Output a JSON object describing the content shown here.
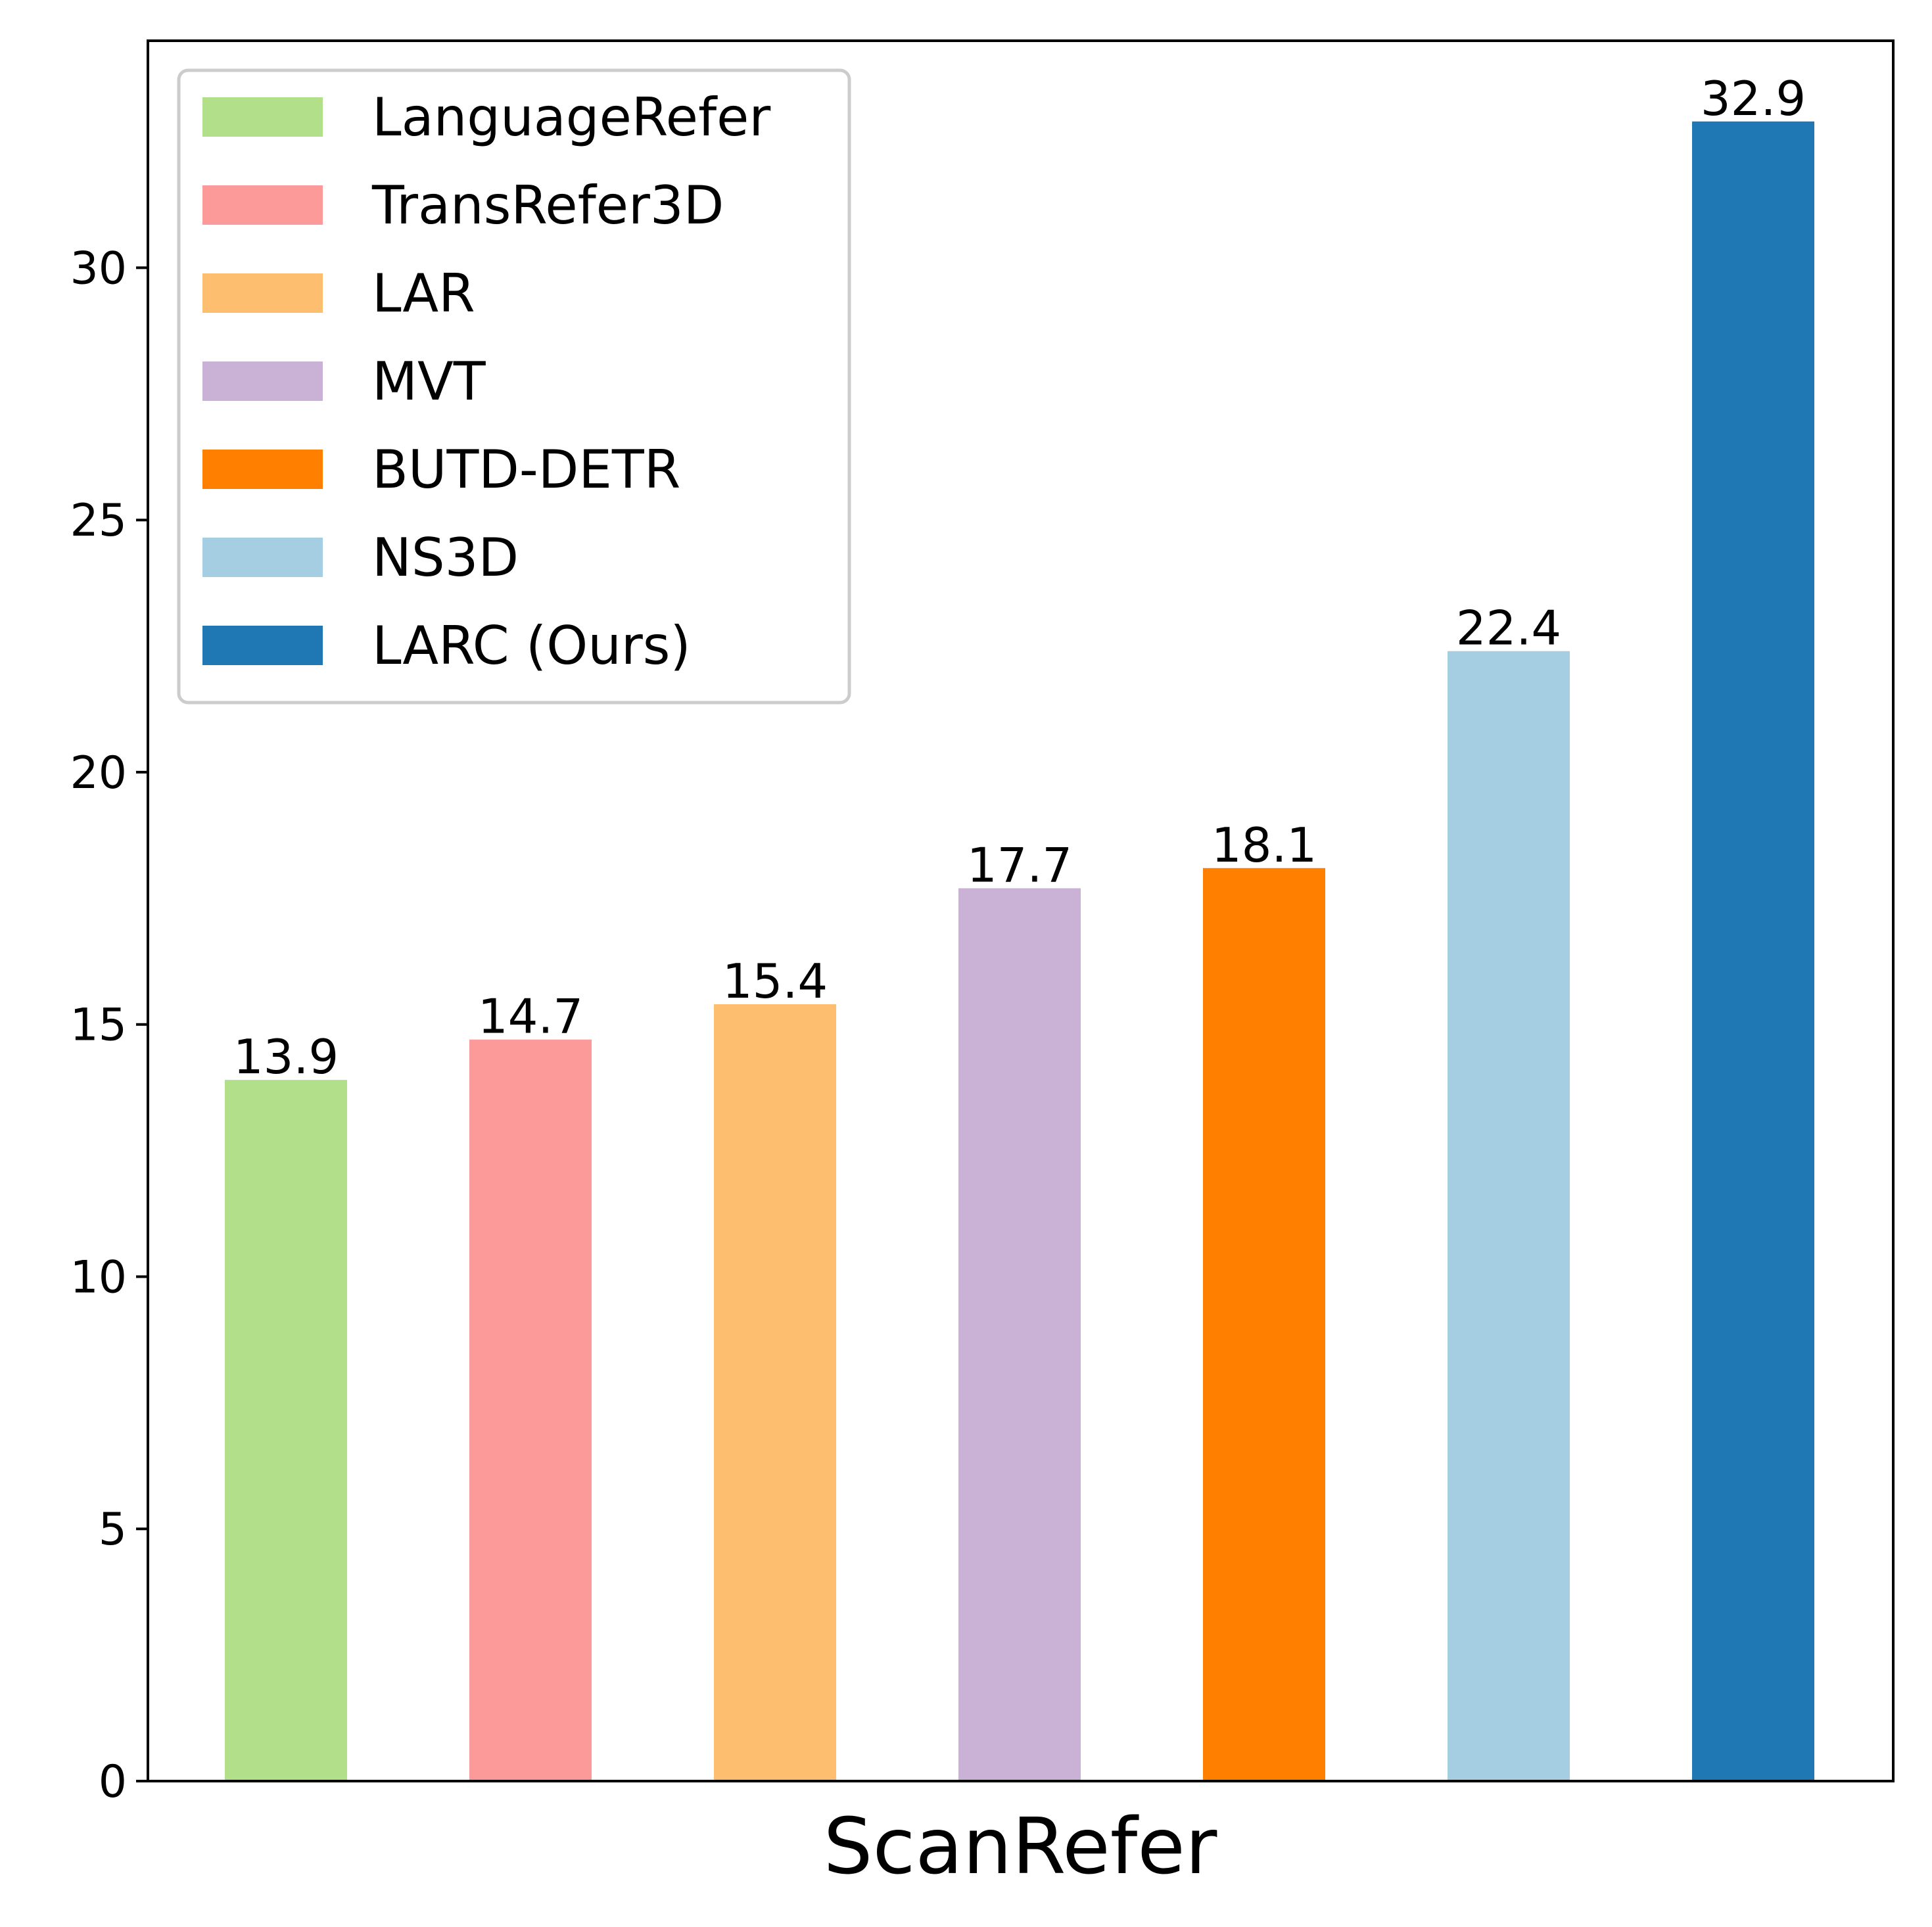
{
  "chart_data": {
    "type": "bar",
    "title": "",
    "xlabel": "ScanRefer",
    "ylabel": "",
    "ylim": [
      0,
      34.5
    ],
    "yticks": [
      0,
      5,
      10,
      15,
      20,
      25,
      30
    ],
    "grid": false,
    "legend_position": "top-left",
    "categories": [
      "LanguageRefer",
      "TransRefer3D",
      "LAR",
      "MVT",
      "BUTD-DETR",
      "NS3D",
      "LARC (Ours)"
    ],
    "values": [
      13.9,
      14.7,
      15.4,
      17.7,
      18.1,
      22.4,
      32.9
    ],
    "value_labels": [
      "13.9",
      "14.7",
      "15.4",
      "17.7",
      "18.1",
      "22.4",
      "32.9"
    ],
    "colors": [
      "#b2df8a",
      "#fb9a99",
      "#fdbf6f",
      "#cab2d6",
      "#ff7f00",
      "#a6cee3",
      "#1f78b4"
    ]
  }
}
